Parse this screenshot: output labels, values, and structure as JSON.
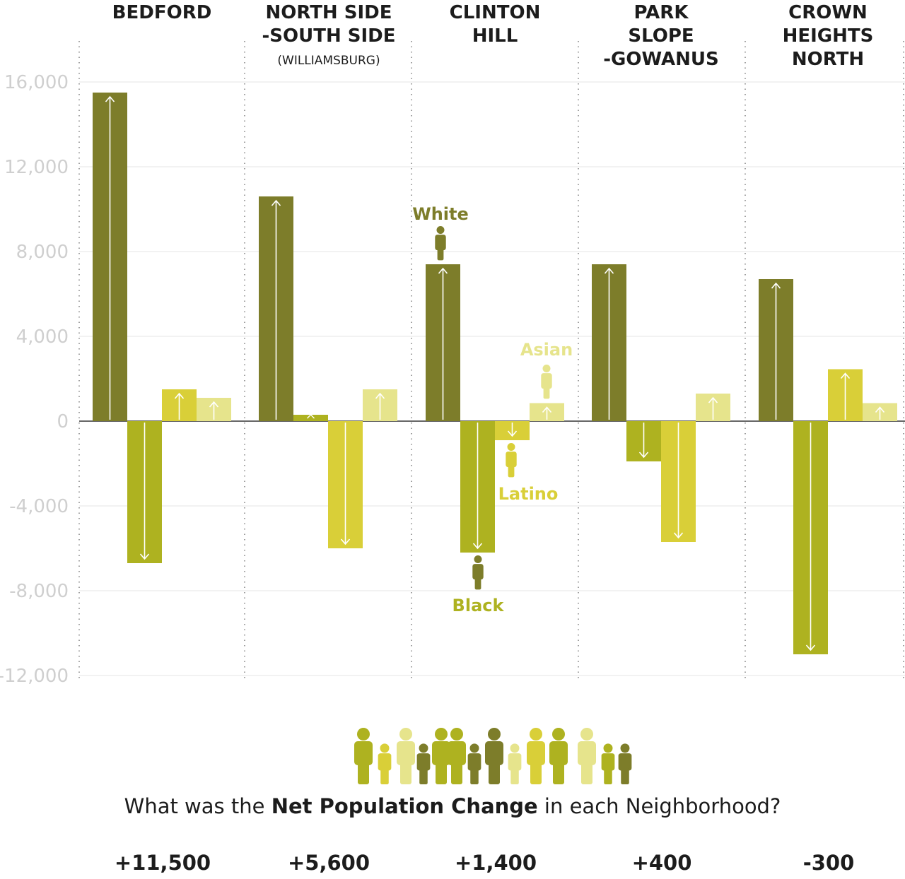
{
  "colors": {
    "white": "#7d7d2a",
    "black": "#aeb220",
    "latino": "#d9cf38",
    "asian": "#e6e48c",
    "grid": "#e6e6e6",
    "tick": "#cfcfcf",
    "text": "#1c1c1c"
  },
  "chart_data": {
    "type": "bar",
    "ylim": [
      -12000,
      16000
    ],
    "yticks": [
      "16,000",
      "12,000",
      "8,000",
      "4,000",
      "0",
      "-4,000",
      "-8,000",
      "-12,000"
    ],
    "ytick_values": [
      16000,
      12000,
      8000,
      4000,
      0,
      -4000,
      -8000,
      -12000
    ],
    "series_names": [
      "White",
      "Black",
      "Latino",
      "Asian"
    ],
    "neighborhoods": [
      {
        "title_lines": [
          "BEDFORD"
        ],
        "subtitle": "",
        "values": [
          15500,
          -6700,
          1500,
          1100
        ],
        "total": "+11,500"
      },
      {
        "title_lines": [
          "NORTH SIDE",
          "-SOUTH SIDE"
        ],
        "subtitle": "(WILLIAMSBURG)",
        "values": [
          10600,
          300,
          -6000,
          1500
        ],
        "total": "+5,600"
      },
      {
        "title_lines": [
          "CLINTON",
          "HILL"
        ],
        "subtitle": "",
        "values": [
          7400,
          -6200,
          -900,
          850
        ],
        "total": "+1,400"
      },
      {
        "title_lines": [
          "PARK",
          "SLOPE",
          "-GOWANUS"
        ],
        "subtitle": "",
        "values": [
          7400,
          -1900,
          -5700,
          1300
        ],
        "total": "+400"
      },
      {
        "title_lines": [
          "CROWN",
          "HEIGHTS",
          "NORTH"
        ],
        "subtitle": "",
        "values": [
          6700,
          -11000,
          2450,
          850
        ],
        "total": "-300"
      }
    ],
    "annotations": {
      "white": "White",
      "black": "Black",
      "latino": "Latino",
      "asian": "Asian"
    }
  },
  "footer": {
    "question_prefix": "What was the ",
    "question_bold": "Net Population Change",
    "question_suffix": " in each Neighborhood?"
  }
}
